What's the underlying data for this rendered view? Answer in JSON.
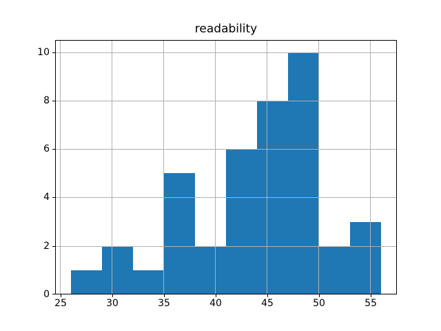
{
  "chart_data": {
    "type": "bar",
    "subtype": "histogram",
    "title": "readability",
    "xlabel": "",
    "ylabel": "",
    "bin_edges": [
      26,
      29,
      32,
      35,
      38,
      41,
      44,
      47,
      50,
      53,
      56
    ],
    "values": [
      1,
      2,
      1,
      5,
      2,
      6,
      8,
      10,
      2,
      3
    ],
    "xticks": [
      25,
      30,
      35,
      40,
      45,
      50,
      55
    ],
    "yticks": [
      0,
      2,
      4,
      6,
      8,
      10
    ],
    "xlim": [
      24.5,
      57.5
    ],
    "ylim": [
      0,
      10.5
    ],
    "grid": true,
    "legend": "none",
    "bar_color": "#1f77b4",
    "grid_color": "#b0b0b0",
    "spine_color": "#000000",
    "background_color": "#ffffff"
  }
}
